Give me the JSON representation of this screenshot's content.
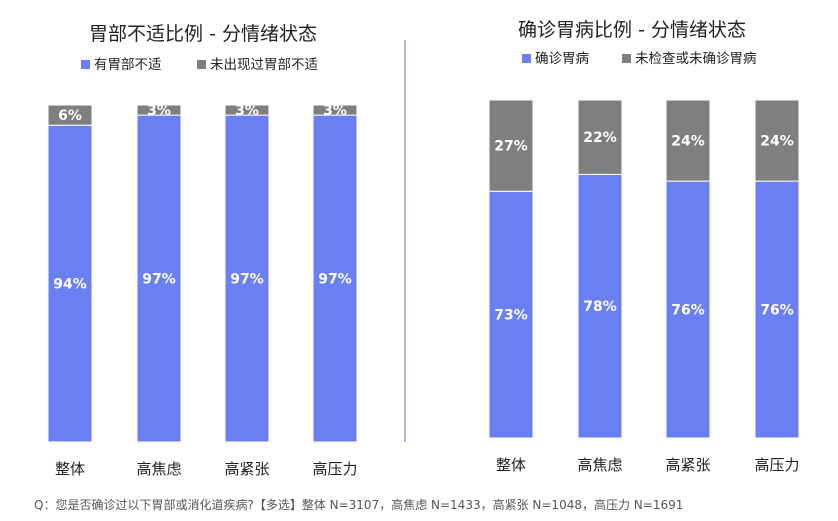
{
  "footnote": "Q：您是否确诊过以下胃部或消化道疾病?【多选】整体 N=3107，高焦虑 N=1433，高紧张 N=1048，高压力 N=1691",
  "colors": {
    "blue": "#6a7ff2",
    "gray": "#7f7f7f",
    "divider": "#6a7ff2"
  },
  "chart_data": [
    {
      "type": "bar",
      "stacked": true,
      "title": "胃部不适比例 - 分情绪状态",
      "categories": [
        "整体",
        "高焦虑",
        "高紧张",
        "高压力"
      ],
      "series": [
        {
          "name": "有胃部不适",
          "values": [
            94,
            97,
            97,
            97
          ],
          "labels": [
            "94%",
            "97%",
            "97%",
            "97%"
          ]
        },
        {
          "name": "未出现过胃部不适",
          "values": [
            6,
            3,
            3,
            3
          ],
          "labels": [
            "6%",
            "3%",
            "3%",
            "3%"
          ]
        }
      ],
      "ylim": [
        0,
        100
      ],
      "legend": "top"
    },
    {
      "type": "bar",
      "stacked": true,
      "title": "确诊胃病比例 - 分情绪状态",
      "categories": [
        "整体",
        "高焦虑",
        "高紧张",
        "高压力"
      ],
      "series": [
        {
          "name": "确诊胃病",
          "values": [
            73,
            78,
            76,
            76
          ],
          "labels": [
            "73%",
            "78%",
            "76%",
            "76%"
          ]
        },
        {
          "name": "未检查或未确诊胃病",
          "values": [
            27,
            22,
            24,
            24
          ],
          "labels": [
            "27%",
            "22%",
            "24%",
            "24%"
          ]
        }
      ],
      "ylim": [
        0,
        100
      ],
      "legend": "top"
    }
  ]
}
